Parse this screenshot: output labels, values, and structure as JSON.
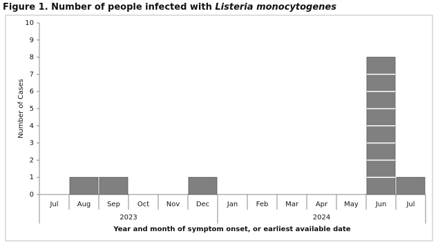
{
  "chart_data": {
    "type": "bar",
    "title": "Figure 1. Number of people infected with",
    "title_italic": "Listeria monocytogenes",
    "y_label": "Number of Cases",
    "x_label": "Year and month of symptom onset, or earliest available date",
    "color": "#808080",
    "ylim": [
      0,
      10
    ],
    "yticks": [
      0,
      1,
      2,
      3,
      4,
      5,
      6,
      7,
      8,
      9,
      10
    ],
    "grid": false,
    "x_groups": [
      {
        "label": "2023",
        "categories": [
          "Jul",
          "Aug",
          "Sep",
          "Oct",
          "Nov",
          "Dec"
        ],
        "values": [
          0,
          1,
          1,
          0,
          0,
          1
        ]
      },
      {
        "label": "2024",
        "categories": [
          "Jan",
          "Feb",
          "Mar",
          "Apr",
          "May",
          "Jun",
          "Jul"
        ],
        "values": [
          0,
          0,
          0,
          0,
          0,
          8,
          1
        ]
      }
    ]
  }
}
